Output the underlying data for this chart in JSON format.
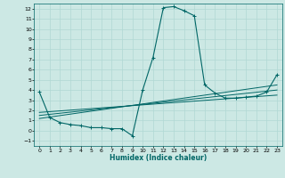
{
  "xlabel": "Humidex (Indice chaleur)",
  "bg_color": "#cce8e4",
  "grid_color": "#b0d8d4",
  "line_color": "#006666",
  "xlim": [
    -0.5,
    23.5
  ],
  "ylim": [
    -1.5,
    12.5
  ],
  "xticks": [
    0,
    1,
    2,
    3,
    4,
    5,
    6,
    7,
    8,
    9,
    10,
    11,
    12,
    13,
    14,
    15,
    16,
    17,
    18,
    19,
    20,
    21,
    22,
    23
  ],
  "yticks": [
    -1,
    0,
    1,
    2,
    3,
    4,
    5,
    6,
    7,
    8,
    9,
    10,
    11,
    12
  ],
  "main_x": [
    0,
    1,
    2,
    3,
    4,
    5,
    6,
    7,
    8,
    9,
    10,
    11,
    12,
    13,
    14,
    15,
    16,
    17,
    18,
    19,
    20,
    21,
    22,
    23
  ],
  "main_y": [
    3.8,
    1.3,
    0.8,
    0.6,
    0.5,
    0.3,
    0.3,
    0.2,
    0.2,
    -0.5,
    4.0,
    7.2,
    12.1,
    12.2,
    11.8,
    11.3,
    4.5,
    3.7,
    3.2,
    3.2,
    3.3,
    3.4,
    3.8,
    5.5
  ],
  "line1_x": [
    0,
    23
  ],
  "line1_y": [
    1.2,
    4.5
  ],
  "line2_x": [
    0,
    23
  ],
  "line2_y": [
    1.5,
    4.0
  ],
  "line3_x": [
    0,
    23
  ],
  "line3_y": [
    1.8,
    3.5
  ]
}
